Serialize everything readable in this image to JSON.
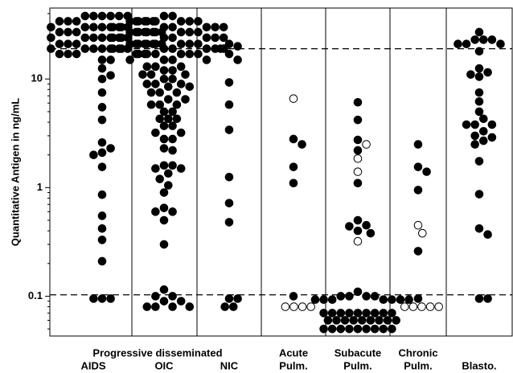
{
  "chart_data": {
    "type": "dot",
    "y_label": "Quantitative Antigen in ng/mL",
    "group_label": "Progressive disseminated",
    "categories": [
      [
        "AIDS"
      ],
      [
        "OIC"
      ],
      [
        "NIC"
      ],
      [
        "Acute",
        "Pulm."
      ],
      [
        "Subacute",
        "Pulm."
      ],
      [
        "Chronic",
        "Pulm."
      ],
      [
        "Blasto."
      ]
    ],
    "log_scale": true,
    "ylim": [
      0.043,
      45
    ],
    "yticks": [
      0.1,
      1,
      10
    ],
    "minor_yticks": [
      0.05,
      0.06,
      0.07,
      0.08,
      0.09,
      0.2,
      0.3,
      0.4,
      0.5,
      0.6,
      0.7,
      0.8,
      0.9,
      2,
      3,
      4,
      5,
      6,
      7,
      8,
      9,
      20,
      30,
      40
    ],
    "ref_lines": [
      19,
      0.103
    ],
    "color": "#000000",
    "values": [
      [
        38,
        38,
        38,
        38,
        38,
        38,
        34,
        34,
        34,
        34,
        34,
        34,
        30,
        30,
        30,
        30,
        30,
        30,
        30,
        27,
        27,
        27,
        27,
        27,
        27,
        27,
        24,
        24,
        24,
        24,
        24,
        24,
        24,
        21,
        21,
        21,
        21,
        21,
        21,
        21,
        19,
        19,
        19,
        19,
        19,
        19,
        19,
        17,
        17,
        17,
        17,
        17,
        15,
        15,
        12.5,
        10.8,
        10,
        7.5,
        5.5,
        4.2,
        2.6,
        2.3,
        2.1,
        2.0,
        1.55,
        0.86,
        0.55,
        0.42,
        0.33,
        0.21,
        0.095,
        0.095,
        0.095
      ],
      [
        38,
        38,
        34,
        34,
        34,
        34,
        34,
        34,
        34,
        30,
        30,
        30,
        30,
        30,
        30,
        30,
        27,
        27,
        27,
        27,
        27,
        27,
        27,
        24,
        24,
        24,
        24,
        24,
        24,
        24,
        21,
        21,
        21,
        21,
        21,
        21,
        21,
        19,
        19,
        19,
        19,
        19,
        19,
        19,
        17,
        17,
        17,
        17,
        17,
        17,
        15,
        15,
        15,
        15,
        13,
        13,
        13,
        12,
        12,
        11,
        11,
        11,
        10,
        10,
        9,
        9,
        9,
        8.5,
        8.5,
        7.5,
        7.5,
        7.5,
        6.5,
        6.5,
        5.8,
        5.8,
        5.8,
        5,
        5,
        4.3,
        4.3,
        4.3,
        3.7,
        3.7,
        3.2,
        3.2,
        2.8,
        2.8,
        2.3,
        2.2,
        1.6,
        1.6,
        1.5,
        1.5,
        1.35,
        1.2,
        1.05,
        0.9,
        0.65,
        0.6,
        0.6,
        0.5,
        0.3,
        0.115,
        0.1,
        0.1,
        0.09,
        0.09,
        0.08,
        0.08,
        0.08,
        0.08
      ],
      [
        21,
        20,
        19,
        17,
        15,
        9.3,
        5.8,
        3.4,
        1.25,
        0.72,
        0.48,
        0.095,
        0.095,
        0.08,
        0.08
      ],
      [
        2.8,
        2.5,
        1.55,
        1.1,
        0.1
      ],
      [
        6.1,
        4.2,
        2.75,
        2.2,
        1.1,
        0.5,
        0.45,
        0.44,
        0.4,
        0.38,
        0.11,
        0.1,
        0.1,
        0.1,
        0.1,
        0.093,
        0.093,
        0.093,
        0.093,
        0.093,
        0.093,
        0.093,
        0.07,
        0.07,
        0.07,
        0.07,
        0.07,
        0.07,
        0.07,
        0.07,
        0.07,
        0.06,
        0.06,
        0.06,
        0.06,
        0.06,
        0.06,
        0.06,
        0.06,
        0.06,
        0.05,
        0.05,
        0.05,
        0.05,
        0.05,
        0.05,
        0.05,
        0.05,
        0.05
      ],
      [
        2.5,
        1.55,
        1.4,
        0.95,
        0.26,
        0.095
      ],
      [
        27,
        23,
        23,
        23,
        21,
        21,
        21,
        18,
        12.5,
        11.5,
        11,
        10.5,
        7.5,
        6.2,
        5,
        4.3,
        3.8,
        3.8,
        3.8,
        3.3,
        3,
        2.9,
        2.7,
        2.5,
        1.75,
        0.87,
        0.42,
        0.37,
        0.095,
        0.095
      ]
    ],
    "hollow": [
      [],
      [],
      [],
      [
        6.6
      ],
      [
        2.5,
        1.85,
        1.4,
        0.32,
        0.08,
        0.08,
        0.08,
        0.08,
        0.08,
        0.08,
        0.08,
        0.08,
        0.08
      ],
      [
        0.45,
        0.38
      ],
      []
    ]
  }
}
